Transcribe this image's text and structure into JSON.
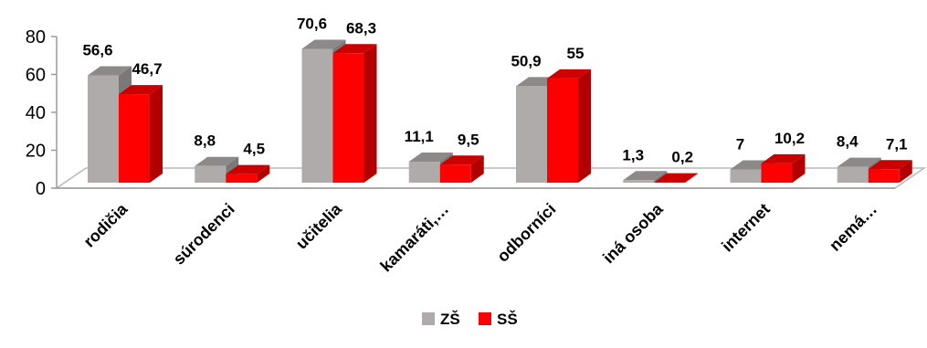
{
  "chart_data": {
    "type": "bar",
    "categories": [
      "rodičia",
      "súrodenci",
      "učitelia",
      "kamaráti,…",
      "odborníci",
      "iná osoba",
      "internet",
      "nemá…"
    ],
    "series": [
      {
        "name": "ZŠ",
        "values": [
          56.6,
          8.8,
          70.6,
          11.1,
          50.9,
          1.3,
          7,
          8.4
        ],
        "labels": [
          "56,6",
          "8,8",
          "70,6",
          "11,1",
          "50,9",
          "1,3",
          "7",
          "8,4"
        ]
      },
      {
        "name": "SŠ",
        "values": [
          46.7,
          4.5,
          68.3,
          9.5,
          55,
          0.2,
          10.2,
          7.1
        ],
        "labels": [
          "46,7",
          "4,5",
          "68,3",
          "9,5",
          "55",
          "0,2",
          "10,2",
          "7,1"
        ]
      }
    ],
    "yticks": [
      "0",
      "20",
      "40",
      "60",
      "80"
    ],
    "ylim": [
      0,
      80
    ],
    "grid": false,
    "legend_position": "bottom",
    "colors": {
      "ZŠ": {
        "front": "#b0abab",
        "side": "#7c7878",
        "top": "#8d8989"
      },
      "SŠ": {
        "front": "#ff0000",
        "side": "#b20000",
        "top": "#cc0000"
      },
      "floor": "#ffffff",
      "floor_edge": "#b9b9b9"
    }
  }
}
